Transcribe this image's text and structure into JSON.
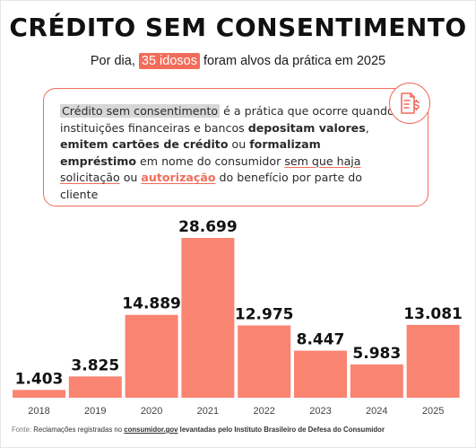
{
  "header": {
    "title": "CRÉDITO SEM CONSENTIMENTO",
    "subtitle_pre": "Por dia,",
    "subtitle_highlight": "35 idosos",
    "subtitle_post": "foram alvos da prática em 2025"
  },
  "card": {
    "t1": "Crédito sem consentimento",
    "t2": " é a prática que ocorre quando instituições financeiras e bancos ",
    "t3": "depositam valores",
    "t4": ", ",
    "t5": "emitem cartões de crédito",
    "t6": " ou ",
    "t7": "formalizam empréstimo",
    "t8": " em nome do consumidor ",
    "t9": "sem que haja solicitação",
    "t10": " ou ",
    "t11": "autorização",
    "t12": " do benefício por parte do cliente",
    "icon": "document-money-icon"
  },
  "chart_data": {
    "type": "bar",
    "categories": [
      "2018",
      "2019",
      "2020",
      "2021",
      "2022",
      "2023",
      "2024",
      "2025"
    ],
    "values": [
      1403,
      3825,
      14889,
      28699,
      12975,
      8447,
      5983,
      13081
    ],
    "value_labels": [
      "1.403",
      "3.825",
      "14.889",
      "28.699",
      "12.975",
      "8.447",
      "5.983",
      "13.081"
    ],
    "bar_color": "#f98472",
    "title": "",
    "xlabel": "",
    "ylabel": "",
    "grid": false,
    "legend": "none"
  },
  "footer": {
    "label": "Fonte:",
    "text1": " Reclamações registradas no ",
    "link": "consumidor.gov",
    "text2": " levantadas pelo Instituto Brasileiro de Defesa do Consumidor"
  },
  "colors": {
    "accent": "#f26c5b",
    "bar": "#f98472",
    "highlight_gray": "#d7d7d7"
  }
}
